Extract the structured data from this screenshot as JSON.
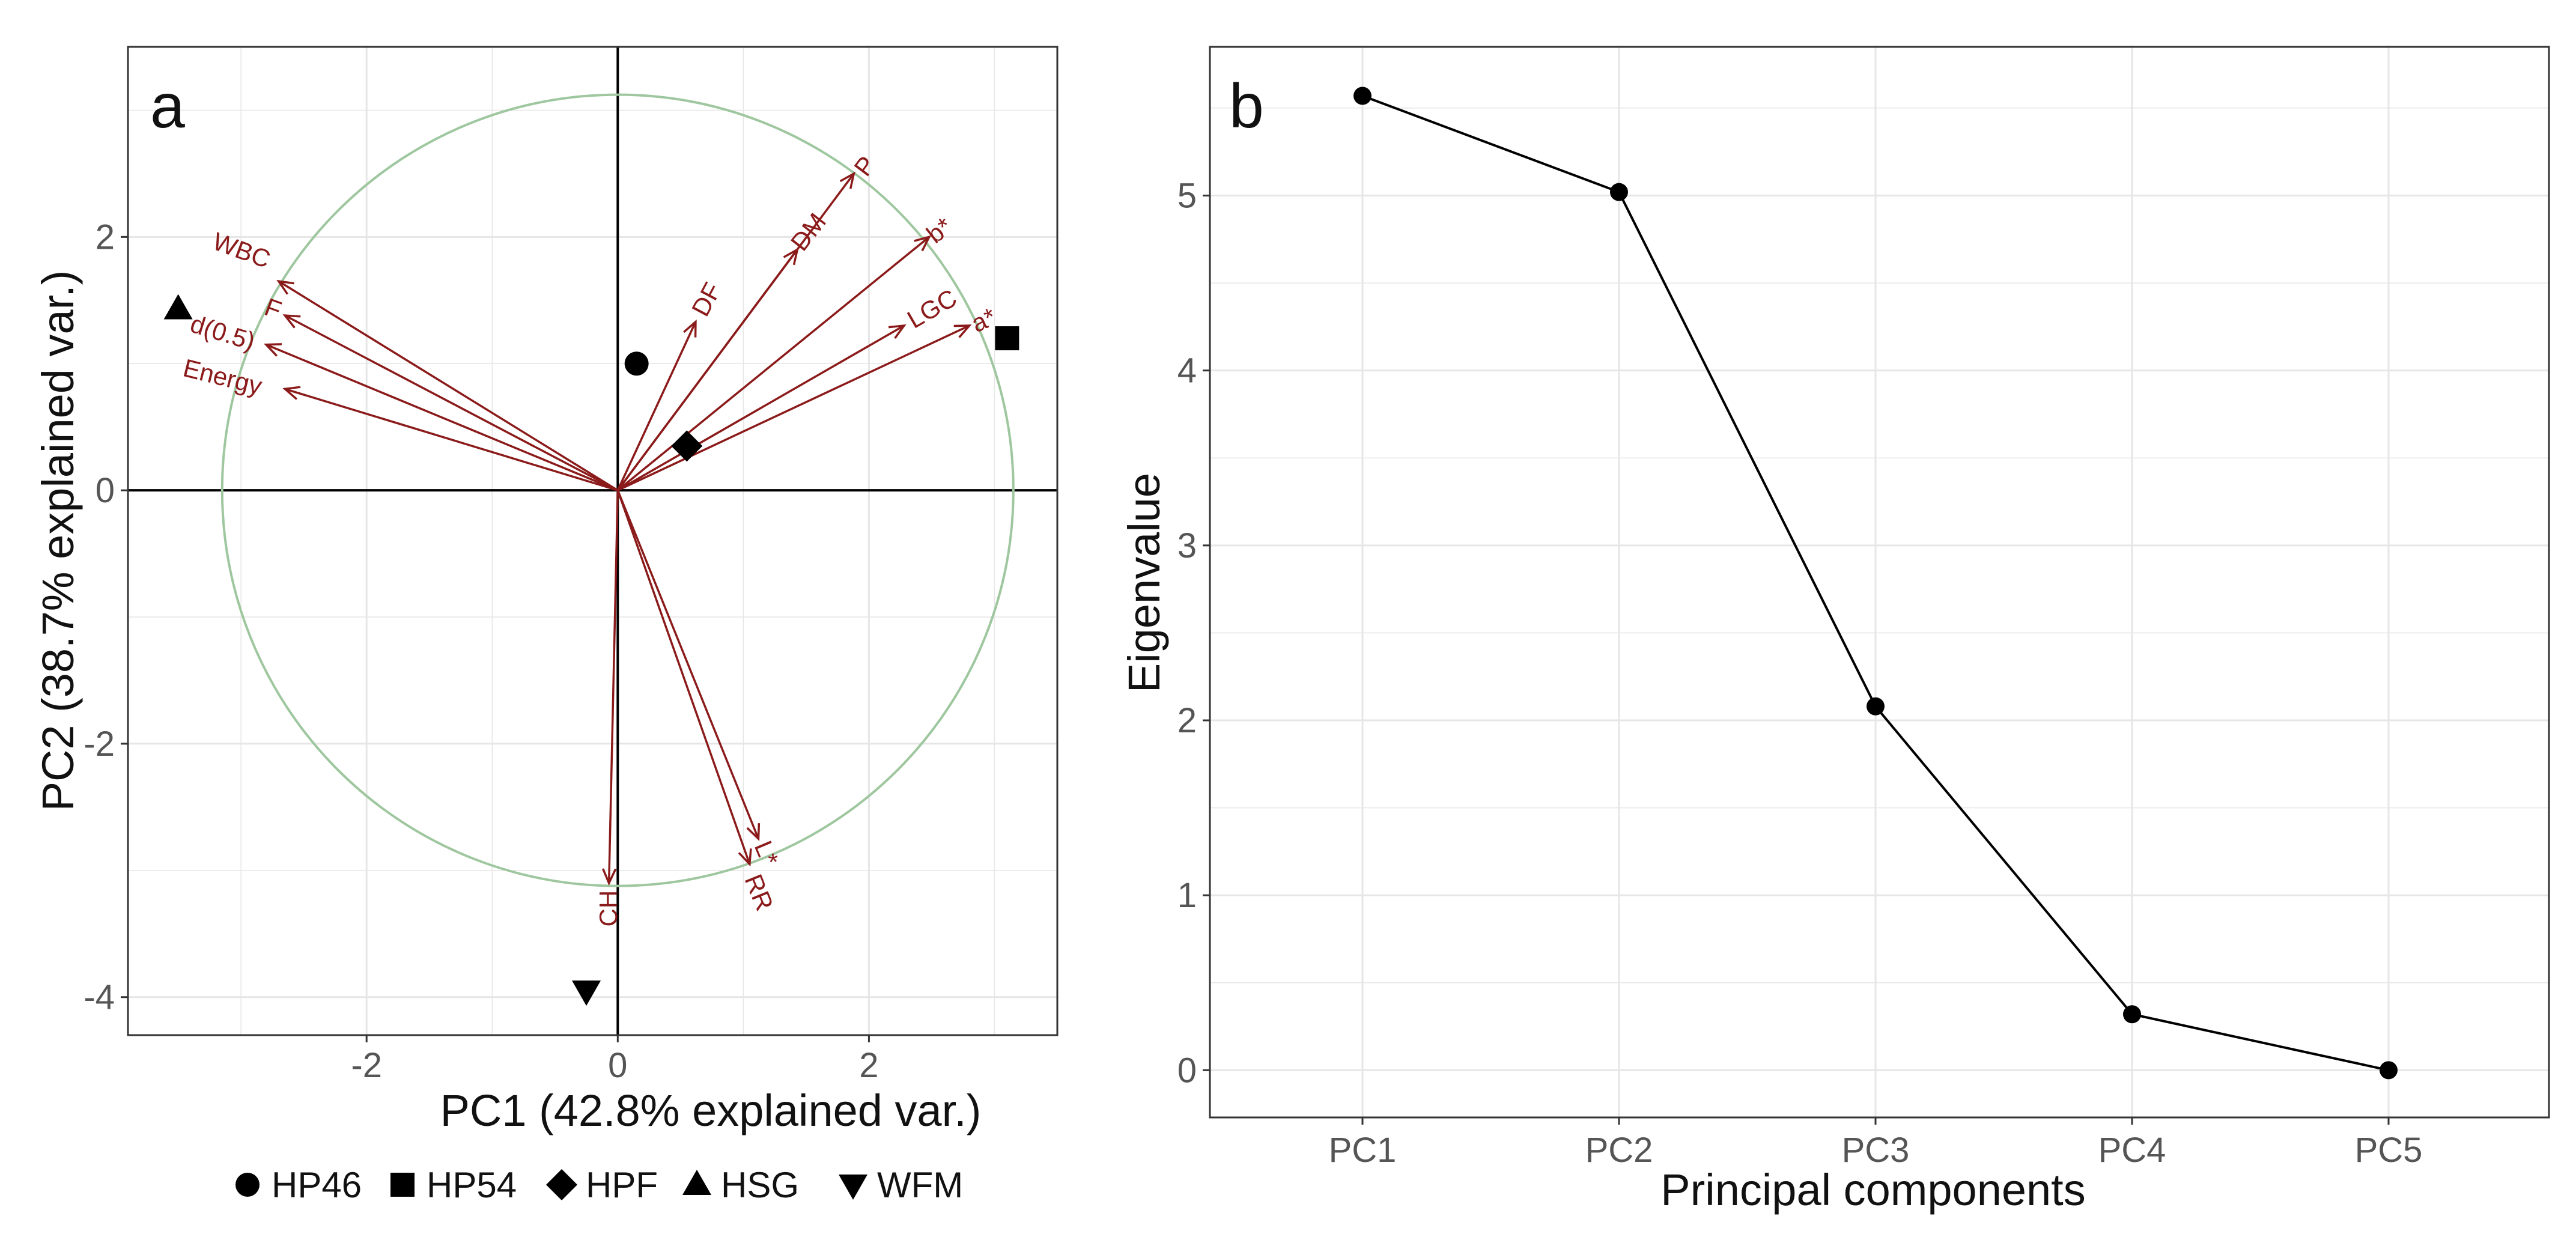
{
  "colors": {
    "arrow": "#8b1a1a",
    "circle": "#9fc79f",
    "grid": "#e6e6e6",
    "marker": "#000000",
    "frame": "#333333"
  },
  "chart_data": [
    {
      "type": "scatter",
      "subtype": "pca-biplot",
      "panel_label": "a",
      "xlabel": "PC1 (42.8% explained var.)",
      "ylabel": "PC2 (38.7% explained var.)",
      "xlim": [
        -3.9,
        3.5
      ],
      "ylim": [
        -4.3,
        3.5
      ],
      "x_ticks": [
        -2,
        0,
        2
      ],
      "x_tick_labels": [
        "-2",
        "0",
        "2"
      ],
      "y_ticks": [
        2,
        0,
        -2,
        -4
      ],
      "y_tick_labels": [
        "2",
        "0",
        "-2",
        "-4"
      ],
      "grid": true,
      "correlation_circle_radius": 3.15,
      "points": [
        {
          "group": "HP46",
          "shape": "circle",
          "x": 0.15,
          "y": 1.0
        },
        {
          "group": "HP54",
          "shape": "square",
          "x": 3.1,
          "y": 1.2
        },
        {
          "group": "HPF",
          "shape": "diamond",
          "x": 0.55,
          "y": 0.35
        },
        {
          "group": "HSG",
          "shape": "triangle-up",
          "x": -3.5,
          "y": 1.43
        },
        {
          "group": "WFM",
          "shape": "triangle-down",
          "x": -0.25,
          "y": -3.95
        }
      ],
      "loadings": [
        {
          "name": "WBC",
          "x": -2.7,
          "y": 1.65,
          "lx": -3.0,
          "ly": 1.88,
          "angle": 20
        },
        {
          "name": "F",
          "x": -2.65,
          "y": 1.38,
          "lx": -2.75,
          "ly": 1.42,
          "angle": 20
        },
        {
          "name": "d(0.5)",
          "x": -2.8,
          "y": 1.15,
          "lx": -3.15,
          "ly": 1.23,
          "angle": 17
        },
        {
          "name": "Energy",
          "x": -2.65,
          "y": 0.8,
          "lx": -3.15,
          "ly": 0.88,
          "angle": 14
        },
        {
          "name": "DF",
          "x": 0.62,
          "y": 1.33,
          "lx": 0.72,
          "ly": 1.5,
          "angle": -62
        },
        {
          "name": "DM",
          "x": 1.43,
          "y": 1.9,
          "lx": 1.53,
          "ly": 2.03,
          "angle": -52
        },
        {
          "name": "P",
          "x": 1.88,
          "y": 2.5,
          "lx": 1.98,
          "ly": 2.55,
          "angle": -53
        },
        {
          "name": "b*",
          "x": 2.48,
          "y": 2.0,
          "lx": 2.57,
          "ly": 2.04,
          "angle": -38
        },
        {
          "name": "LGC",
          "x": 2.28,
          "y": 1.3,
          "lx": 2.51,
          "ly": 1.42,
          "angle": -30
        },
        {
          "name": "a*",
          "x": 2.8,
          "y": 1.3,
          "lx": 2.92,
          "ly": 1.33,
          "angle": -25
        },
        {
          "name": "L*",
          "x": 1.12,
          "y": -2.75,
          "lx": 1.17,
          "ly": -2.87,
          "angle": 67
        },
        {
          "name": "RR",
          "x": 1.05,
          "y": -2.95,
          "lx": 1.11,
          "ly": -3.18,
          "angle": 68
        },
        {
          "name": "CH",
          "x": -0.07,
          "y": -3.1,
          "lx": -0.06,
          "ly": -3.3,
          "angle": -90
        }
      ],
      "legend": [
        {
          "shape": "circle",
          "label": "HP46"
        },
        {
          "shape": "square",
          "label": "HP54"
        },
        {
          "shape": "diamond",
          "label": "HPF"
        },
        {
          "shape": "triangle-up",
          "label": "HSG"
        },
        {
          "shape": "triangle-down",
          "label": "WFM"
        }
      ],
      "legend_position": "bottom"
    },
    {
      "type": "line",
      "panel_label": "b",
      "xlabel": "Principal components",
      "ylabel": "Eigenvalue",
      "categories": [
        "PC1",
        "PC2",
        "PC3",
        "PC4",
        "PC5"
      ],
      "values": [
        5.57,
        5.02,
        2.08,
        0.32,
        0.0
      ],
      "ylim": [
        -0.27,
        5.85
      ],
      "y_ticks": [
        0,
        1,
        2,
        3,
        4,
        5
      ],
      "y_tick_labels": [
        "0",
        "1",
        "2",
        "3",
        "4",
        "5"
      ],
      "grid": true
    }
  ]
}
